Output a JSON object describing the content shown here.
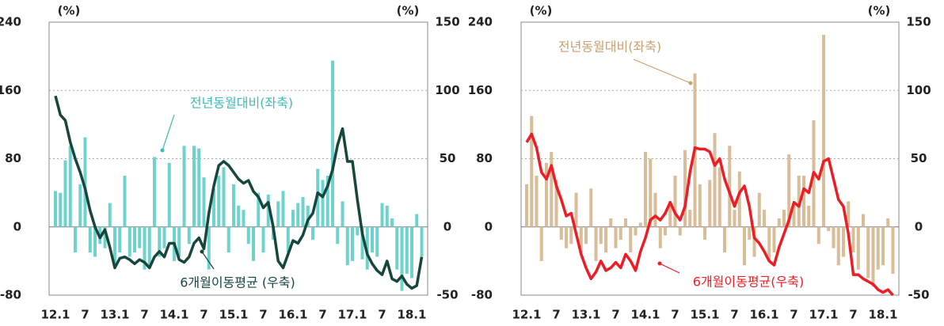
{
  "chart_data": [
    {
      "type": "combo",
      "categories": [
        "12.1",
        null,
        null,
        null,
        null,
        null,
        "7",
        null,
        null,
        null,
        null,
        null,
        "13.1",
        null,
        null,
        null,
        null,
        null,
        "7",
        null,
        null,
        null,
        null,
        null,
        "14.1",
        null,
        null,
        null,
        null,
        null,
        "7",
        null,
        null,
        null,
        null,
        null,
        "15.1",
        null,
        null,
        null,
        null,
        null,
        "7",
        null,
        null,
        null,
        null,
        null,
        "16.1",
        null,
        null,
        null,
        null,
        null,
        "7",
        null,
        null,
        null,
        null,
        null,
        "17.1",
        null,
        null,
        null,
        null,
        null,
        "7",
        null,
        null,
        null,
        null,
        null,
        "18.1",
        null,
        null
      ],
      "ylim": [
        -80,
        240
      ],
      "yticks": [
        -80,
        0,
        80,
        160,
        240
      ],
      "ylabel": "(%)",
      "y2lim": [
        -50,
        150
      ],
      "y2ticks": [
        -50,
        0,
        50,
        100,
        150
      ],
      "y2label": "(%)",
      "grid": true,
      "series": [
        {
          "name": "전년동월대비(좌축)",
          "type": "bar",
          "color": "#6fd3cd",
          "values": [
            42,
            40,
            78,
            95,
            -30,
            50,
            105,
            -30,
            -35,
            -20,
            -25,
            28,
            -45,
            -30,
            60,
            -35,
            -30,
            -25,
            -50,
            -45,
            82,
            -35,
            -25,
            75,
            -40,
            -35,
            95,
            -20,
            95,
            92,
            58,
            -50,
            45,
            60,
            70,
            -30,
            50,
            25,
            20,
            -20,
            -40,
            40,
            -30,
            38,
            -15,
            30,
            42,
            -30,
            20,
            28,
            35,
            25,
            -15,
            68,
            55,
            60,
            195,
            -20,
            30,
            -45,
            -40,
            -10,
            -38,
            -50,
            -30,
            -35,
            28,
            25,
            10,
            -50,
            -75,
            -55,
            -60,
            15,
            -35
          ]
        },
        {
          "name": "6개월이동평균  (우축)",
          "type": "line",
          "axis": "y2",
          "color": "#17463c",
          "values": [
            96,
            82,
            78,
            62,
            50,
            40,
            28,
            12,
            0,
            -8,
            -2,
            -15,
            -30,
            -23,
            -22,
            -24,
            -27,
            -24,
            -26,
            -30,
            -22,
            -18,
            -22,
            -12,
            -12,
            -24,
            -26,
            -22,
            -12,
            -8,
            -16,
            10,
            30,
            45,
            48,
            45,
            40,
            35,
            32,
            34,
            26,
            22,
            14,
            18,
            0,
            -25,
            -30,
            -20,
            -10,
            -12,
            -6,
            5,
            10,
            25,
            22,
            30,
            42,
            60,
            72,
            48,
            48,
            20,
            -5,
            -20,
            -27,
            -32,
            -35,
            -25,
            -38,
            -40,
            -36,
            -42,
            -45,
            -43,
            -22
          ]
        }
      ]
    },
    {
      "type": "combo",
      "categories": [
        "12.1",
        null,
        null,
        null,
        null,
        null,
        "7",
        null,
        null,
        null,
        null,
        null,
        "13.1",
        null,
        null,
        null,
        null,
        null,
        "7",
        null,
        null,
        null,
        null,
        null,
        "14.1",
        null,
        null,
        null,
        null,
        null,
        "7",
        null,
        null,
        null,
        null,
        null,
        "15.1",
        null,
        null,
        null,
        null,
        null,
        "7",
        null,
        null,
        null,
        null,
        null,
        "16.1",
        null,
        null,
        null,
        null,
        null,
        "7",
        null,
        null,
        null,
        null,
        null,
        "17.1",
        null,
        null,
        null,
        null,
        null,
        "7",
        null,
        null,
        null,
        null,
        null,
        "18.1",
        null,
        null
      ],
      "ylim": [
        -80,
        240
      ],
      "yticks": [
        -80,
        0,
        80,
        160,
        240
      ],
      "ylabel": "(%)",
      "y2lim": [
        -50,
        150
      ],
      "y2ticks": [
        -50,
        0,
        50,
        100,
        150
      ],
      "y2label": "(%)",
      "grid": true,
      "series": [
        {
          "name": "전년동월대비(좌축)",
          "type": "bar",
          "color": "#d9bc98",
          "values": [
            50,
            130,
            60,
            -40,
            75,
            88,
            55,
            -15,
            -25,
            -20,
            40,
            -30,
            -20,
            45,
            -40,
            -20,
            -30,
            10,
            -25,
            -15,
            10,
            -30,
            -10,
            5,
            88,
            80,
            40,
            -25,
            -10,
            30,
            60,
            -10,
            90,
            20,
            180,
            50,
            -15,
            55,
            110,
            70,
            -30,
            95,
            20,
            65,
            -45,
            -15,
            -35,
            40,
            20,
            -40,
            -30,
            10,
            20,
            85,
            25,
            60,
            60,
            25,
            125,
            -20,
            225,
            -5,
            -25,
            -45,
            -35,
            30,
            -30,
            -50,
            15,
            -60,
            -70,
            -50,
            -45,
            10,
            -55
          ]
        },
        {
          "name": "6개월이동평균(우축)",
          "type": "line",
          "axis": "y2",
          "color": "#ee1c24",
          "values": [
            62,
            68,
            58,
            40,
            35,
            45,
            30,
            20,
            8,
            10,
            -5,
            -20,
            -30,
            -38,
            -33,
            -25,
            -32,
            -30,
            -26,
            -30,
            -20,
            -25,
            -32,
            -18,
            -8,
            5,
            8,
            5,
            10,
            18,
            10,
            5,
            15,
            40,
            58,
            57,
            57,
            55,
            45,
            50,
            35,
            25,
            15,
            25,
            30,
            15,
            -8,
            -12,
            -18,
            -25,
            -28,
            -15,
            -5,
            5,
            18,
            15,
            28,
            25,
            40,
            35,
            48,
            50,
            35,
            20,
            15,
            -5,
            -35,
            -35,
            -38,
            -40,
            -42,
            -46,
            -48,
            -46,
            -50
          ]
        }
      ]
    }
  ]
}
